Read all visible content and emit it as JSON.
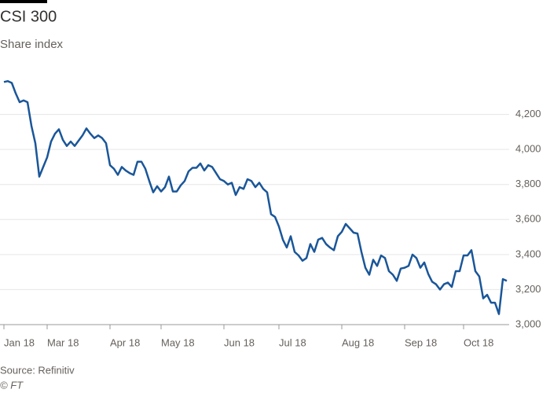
{
  "chart_data": {
    "type": "line",
    "title": "CSI 300",
    "subtitle": "Share index",
    "source": "Source: Refinitiv",
    "credit": "© FT",
    "categories": [
      "Jan 18",
      null,
      null,
      null,
      null,
      null,
      null,
      null,
      null,
      null,
      null,
      "Mar 18",
      null,
      null,
      null,
      null,
      null,
      null,
      null,
      null,
      null,
      null,
      null,
      null,
      null,
      null,
      null,
      "Apr 18",
      null,
      null,
      null,
      null,
      null,
      null,
      null,
      null,
      null,
      null,
      null,
      null,
      "May 18",
      null,
      null,
      null,
      null,
      null,
      null,
      null,
      null,
      null,
      null,
      null,
      null,
      null,
      null,
      null,
      "Jun 18",
      null,
      null,
      null,
      null,
      null,
      null,
      null,
      null,
      null,
      null,
      null,
      null,
      null,
      "Jul 18",
      null,
      null,
      null,
      null,
      null,
      null,
      null,
      null,
      null,
      null,
      null,
      null,
      null,
      null,
      null,
      "Aug 18",
      null,
      null,
      null,
      null,
      null,
      null,
      null,
      null,
      null,
      null,
      null,
      null,
      null,
      null,
      null,
      "Sep 18",
      null,
      null,
      null,
      null,
      null,
      null,
      null,
      null,
      null,
      null,
      null,
      null,
      null,
      null,
      "Oct 18",
      null,
      null,
      null,
      null,
      null,
      null,
      null,
      null,
      null,
      null,
      null
    ],
    "values": [
      4385,
      4390,
      4380,
      4320,
      4270,
      4280,
      4270,
      4135,
      4035,
      3845,
      3900,
      3955,
      4045,
      4090,
      4115,
      4055,
      4020,
      4045,
      4020,
      4050,
      4080,
      4120,
      4090,
      4065,
      4080,
      4065,
      4035,
      3910,
      3890,
      3855,
      3900,
      3880,
      3865,
      3855,
      3930,
      3930,
      3890,
      3820,
      3755,
      3790,
      3760,
      3785,
      3845,
      3760,
      3760,
      3795,
      3820,
      3875,
      3895,
      3895,
      3920,
      3880,
      3910,
      3900,
      3865,
      3830,
      3820,
      3800,
      3810,
      3740,
      3785,
      3775,
      3830,
      3820,
      3785,
      3810,
      3775,
      3755,
      3630,
      3615,
      3560,
      3485,
      3440,
      3505,
      3415,
      3395,
      3365,
      3380,
      3460,
      3415,
      3485,
      3495,
      3460,
      3440,
      3425,
      3505,
      3530,
      3575,
      3550,
      3525,
      3520,
      3415,
      3325,
      3285,
      3370,
      3335,
      3395,
      3380,
      3305,
      3285,
      3250,
      3320,
      3325,
      3335,
      3400,
      3380,
      3325,
      3355,
      3290,
      3245,
      3230,
      3200,
      3230,
      3240,
      3215,
      3305,
      3305,
      3395,
      3395,
      3425,
      3305,
      3275,
      3150,
      3170,
      3125,
      3125,
      3060,
      3260,
      3250
    ],
    "color": "#1a5699",
    "ylim": [
      3000,
      4400
    ],
    "yticks": [
      {
        "value": 3000,
        "label": "3,000"
      },
      {
        "value": 3200,
        "label": "3,200"
      },
      {
        "value": 3400,
        "label": "3,400"
      },
      {
        "value": 3600,
        "label": "3,600"
      },
      {
        "value": 3800,
        "label": "3,800"
      },
      {
        "value": 4000,
        "label": "4,000"
      },
      {
        "value": 4200,
        "label": "4,200"
      }
    ],
    "grid": true
  }
}
